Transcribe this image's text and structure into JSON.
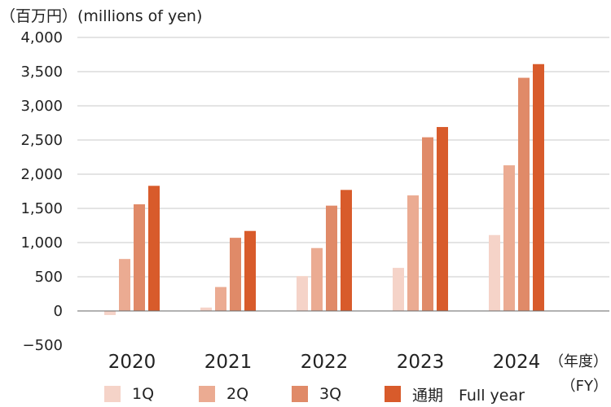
{
  "unit_label": "（百万円）(millions of yen)",
  "fy_label": [
    "（年度）",
    "（FY）"
  ],
  "chart_data": {
    "type": "bar",
    "categories": [
      "2020",
      "2021",
      "2022",
      "2023",
      "2024"
    ],
    "series": [
      {
        "name": "1Q",
        "color": "#f5d3c8",
        "values": [
          -60,
          50,
          510,
          630,
          1110
        ]
      },
      {
        "name": "2Q",
        "color": "#ebab92",
        "values": [
          760,
          350,
          920,
          1690,
          2130
        ]
      },
      {
        "name": "3Q",
        "color": "#e08a68",
        "values": [
          1560,
          1070,
          1540,
          2540,
          3410
        ]
      },
      {
        "name": "通期　Full year",
        "color": "#d85b2b",
        "values": [
          1830,
          1170,
          1770,
          2690,
          3610
        ]
      }
    ],
    "ylim": [
      -500,
      4000
    ],
    "yticks": [
      -500,
      0,
      500,
      1000,
      1500,
      2000,
      2500,
      3000,
      3500,
      4000
    ],
    "ytick_labels": [
      "−500",
      "0",
      "500",
      "1,000",
      "1,500",
      "2,000",
      "2,500",
      "3,000",
      "3,500",
      "4,000"
    ],
    "grid": true,
    "legend": "bottom"
  }
}
